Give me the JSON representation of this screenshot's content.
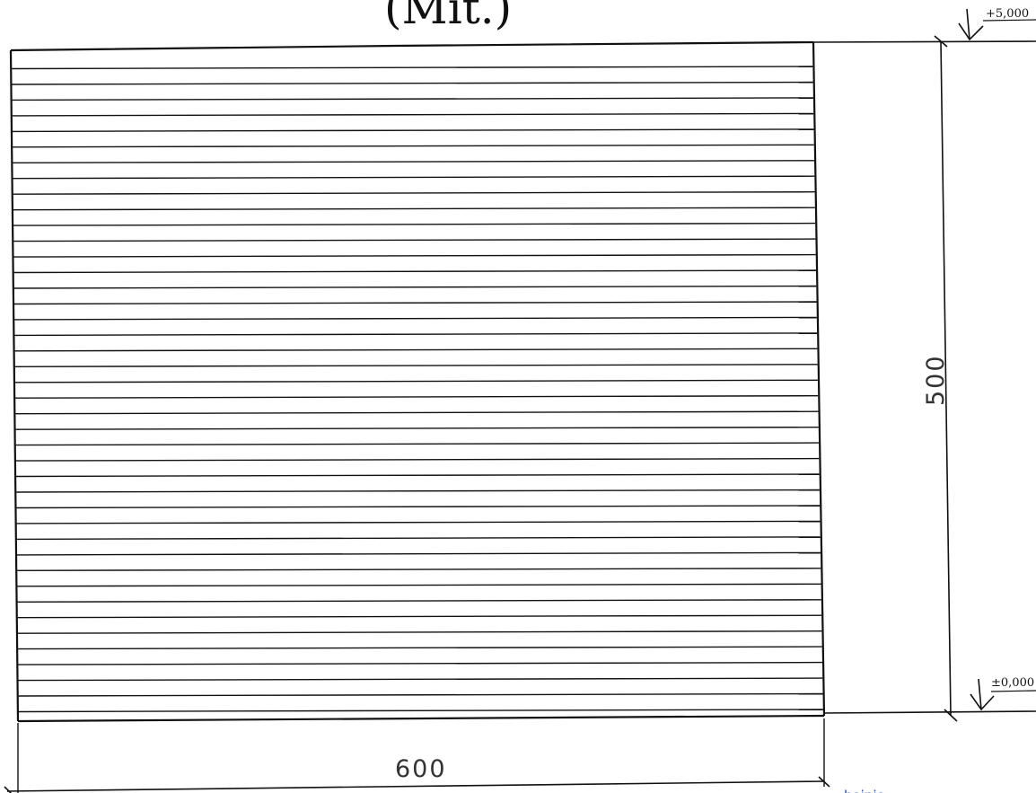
{
  "drawing": {
    "title": "(Mit.)",
    "levels": {
      "top": "+5,000",
      "bottom": "±0,000"
    },
    "dimensions": {
      "width": "600",
      "height": "500"
    },
    "footer_note": "hoinio",
    "slat_count": 42
  }
}
